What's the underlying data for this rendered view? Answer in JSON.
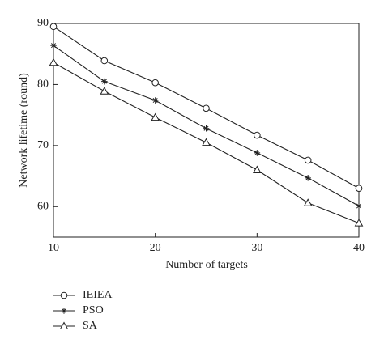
{
  "chart_data": {
    "type": "line",
    "x_label": "Number of targets",
    "y_label": "Network lifetime (round)",
    "x": [
      10,
      15,
      20,
      25,
      30,
      35,
      40
    ],
    "xlim": [
      10,
      40
    ],
    "xticks": [
      10,
      20,
      30,
      40
    ],
    "ylim": [
      55,
      90
    ],
    "yticks": [
      60,
      70,
      80,
      90
    ],
    "grid": false,
    "legend": "below-left",
    "series": [
      {
        "name": "IEIEA",
        "color": "#222222",
        "marker": "circle",
        "values": [
          89.5,
          83.9,
          80.3,
          76.1,
          71.7,
          67.6,
          63.0
        ]
      },
      {
        "name": "PSO",
        "color": "#222222",
        "marker": "star",
        "values": [
          86.4,
          80.5,
          77.4,
          72.8,
          68.8,
          64.7,
          60.1
        ]
      },
      {
        "name": "SA",
        "color": "#222222",
        "marker": "triangle",
        "values": [
          83.6,
          78.9,
          74.6,
          70.5,
          66.0,
          60.6,
          57.3
        ]
      }
    ]
  }
}
